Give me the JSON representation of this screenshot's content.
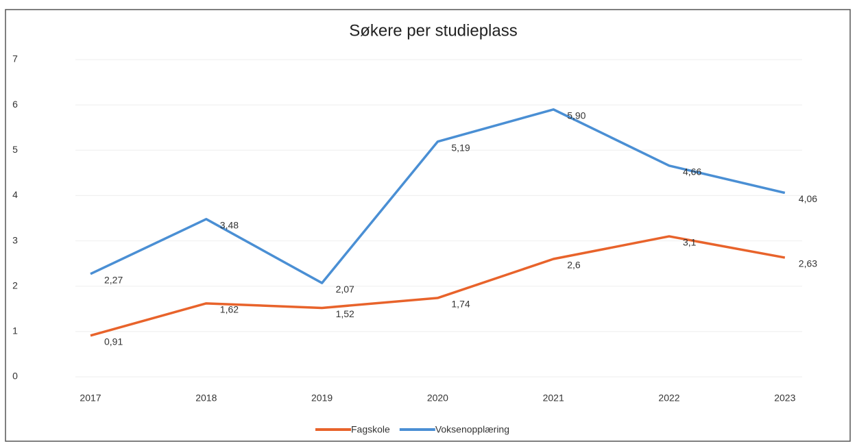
{
  "chart_data": {
    "type": "line",
    "title": "Søkere per studieplass",
    "categories": [
      "2017",
      "2018",
      "2019",
      "2020",
      "2021",
      "2022",
      "2023"
    ],
    "series": [
      {
        "name": "Fagskole",
        "color": "#e8632b",
        "values": [
          0.91,
          1.62,
          1.52,
          1.74,
          2.6,
          3.1,
          2.63
        ],
        "value_labels": [
          "0,91",
          "1,62",
          "1,52",
          "1,74",
          "2,6",
          "3,1",
          "2,63"
        ]
      },
      {
        "name": "Voksenopplæring",
        "color": "#4a8fd4",
        "values": [
          2.27,
          3.48,
          2.07,
          5.19,
          5.9,
          4.66,
          4.06
        ],
        "value_labels": [
          "2,27",
          "3,48",
          "2,07",
          "5,19",
          "5,90",
          "4,66",
          "4,06"
        ]
      }
    ],
    "ylim": [
      0,
      7
    ],
    "yticks": [
      0,
      1,
      2,
      3,
      4,
      5,
      6,
      7
    ],
    "grid": true,
    "legend": "bottom"
  }
}
